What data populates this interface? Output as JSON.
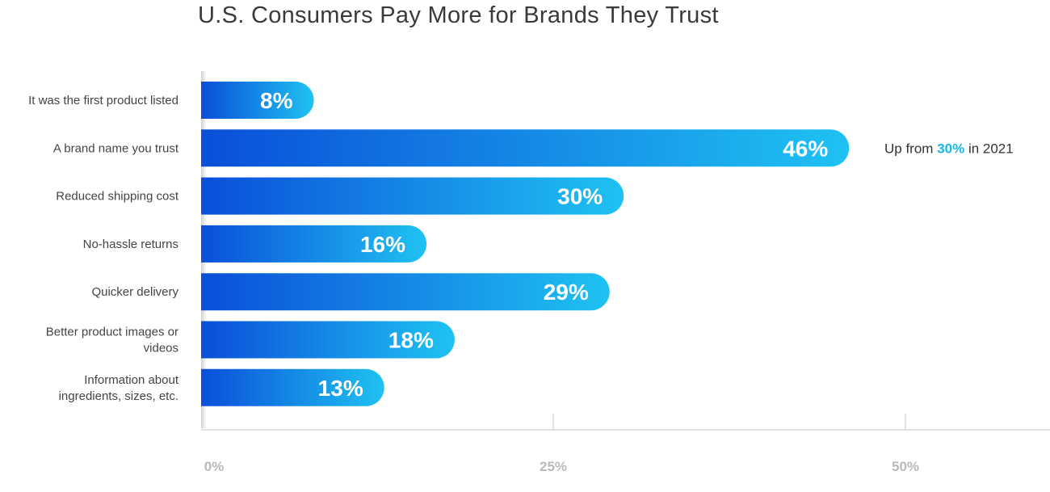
{
  "chart_data": {
    "type": "bar",
    "orientation": "horizontal",
    "title": "U.S. Consumers Pay More for Brands They Trust",
    "categories": [
      "It was the first product listed",
      "A brand name you trust",
      "Reduced shipping cost",
      "No-hassle returns",
      "Quicker delivery",
      "Better product images or videos",
      "Information about ingredients, sizes, etc."
    ],
    "values": [
      8,
      46,
      30,
      16,
      29,
      18,
      13
    ],
    "value_labels": [
      "8%",
      "46%",
      "30%",
      "16%",
      "29%",
      "18%",
      "13%"
    ],
    "xlim": [
      0,
      60
    ],
    "x_ticks": [
      0,
      25,
      50
    ],
    "x_tick_labels": [
      "0%",
      "25%",
      "50%"
    ],
    "grid": false,
    "annotation": {
      "category": "A brand name you trust",
      "prefix": "Up from ",
      "highlight": "30%",
      "suffix": " in 2021"
    },
    "colors": {
      "bar_start": "#0a4fd9",
      "bar_end": "#1fc2f2",
      "highlight": "#1bb5e6",
      "tick_text": "#b9b9b9",
      "axis": "#d8d8d8"
    }
  }
}
